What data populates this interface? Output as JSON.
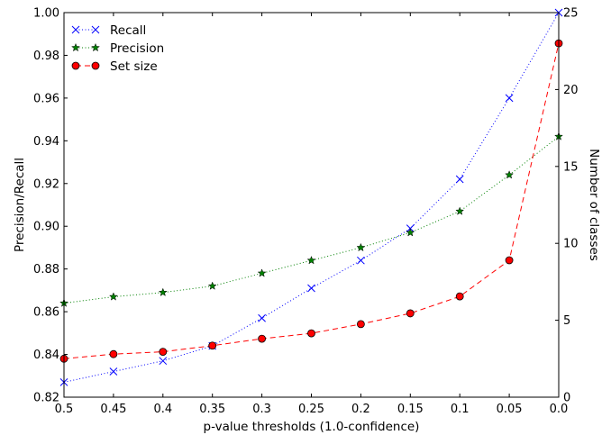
{
  "chart_data": {
    "type": "line",
    "title": "",
    "xlabel": "p-value thresholds (1.0-confidence)",
    "ylabel": "Precision/Recall",
    "y2label": "Number of classes",
    "xlim": [
      0.5,
      0.0
    ],
    "ylim": [
      0.82,
      1.0
    ],
    "y2lim": [
      0,
      25
    ],
    "xticks": [
      "0.5",
      "0.45",
      "0.4",
      "0.35",
      "0.3",
      "0.25",
      "0.2",
      "0.15",
      "0.1",
      "0.05",
      "0.0"
    ],
    "yticks": [
      "0.82",
      "0.84",
      "0.86",
      "0.88",
      "0.90",
      "0.92",
      "0.94",
      "0.96",
      "0.98",
      "1.00"
    ],
    "y2ticks": [
      "0",
      "5",
      "10",
      "15",
      "20",
      "25"
    ],
    "x": [
      0.5,
      0.45,
      0.4,
      0.35,
      0.3,
      0.25,
      0.2,
      0.15,
      0.1,
      0.05,
      0.0
    ],
    "grid": false,
    "legend_position": "top-left",
    "series": [
      {
        "name": "Recall",
        "axis": "left",
        "color": "#0000ff",
        "marker": "x",
        "line": "dotted",
        "values": [
          0.827,
          0.832,
          0.837,
          0.844,
          0.857,
          0.871,
          0.884,
          0.899,
          0.922,
          0.96,
          1.0
        ]
      },
      {
        "name": "Precision",
        "axis": "left",
        "color": "#008000",
        "marker": "star",
        "line": "dotted",
        "values": [
          0.864,
          0.867,
          0.869,
          0.872,
          0.878,
          0.884,
          0.89,
          0.897,
          0.907,
          0.924,
          0.942
        ]
      },
      {
        "name": "Set size",
        "axis": "right",
        "color": "#ff0000",
        "marker": "circle",
        "line": "dashed",
        "values": [
          2.5,
          2.8,
          2.95,
          3.35,
          3.8,
          4.15,
          4.75,
          5.45,
          6.55,
          8.9,
          23.0
        ]
      }
    ]
  }
}
